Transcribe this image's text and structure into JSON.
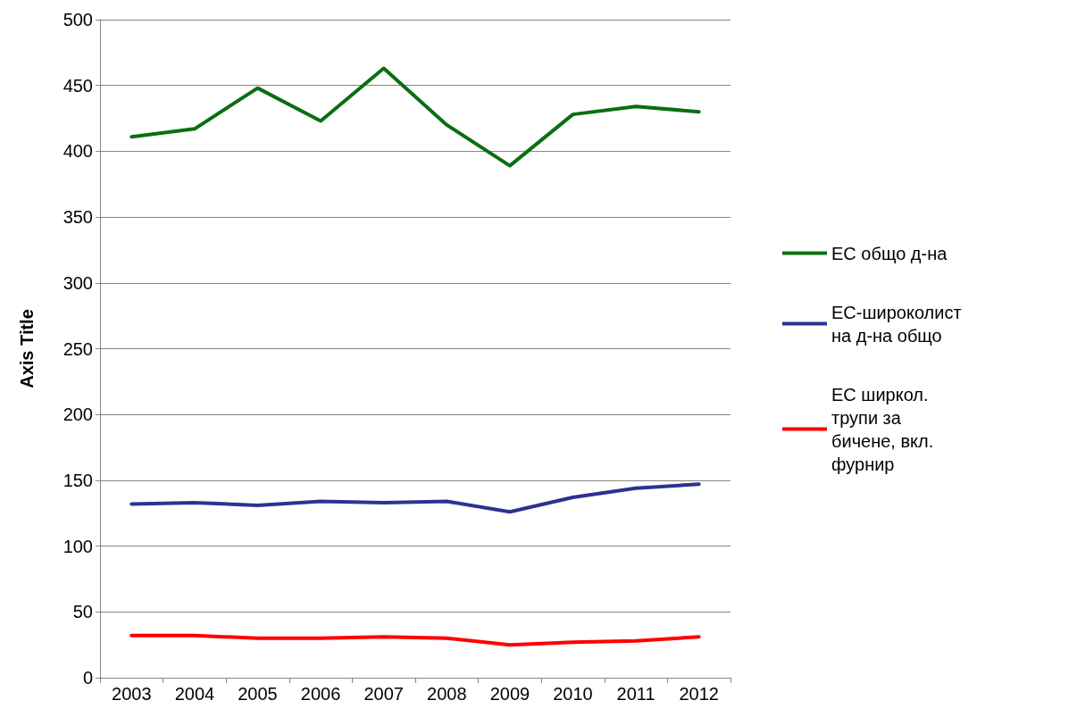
{
  "chart_data": {
    "type": "line",
    "ylabel": "Axis Title",
    "categories": [
      "2003",
      "2004",
      "2005",
      "2006",
      "2007",
      "2008",
      "2009",
      "2010",
      "2011",
      "2012"
    ],
    "series": [
      {
        "name": "ЕС общо д-на",
        "color": "#0b6e12",
        "values": [
          411,
          417,
          448,
          423,
          463,
          420,
          389,
          428,
          434,
          430
        ]
      },
      {
        "name": "ЕС-широколистна д-на общо",
        "color": "#2e3192",
        "values": [
          132,
          133,
          131,
          134,
          133,
          134,
          126,
          137,
          144,
          147
        ]
      },
      {
        "name": "ЕС ширкол. трупи за бичене, вкл. фурнир",
        "color": "#ff0000",
        "values": [
          32,
          32,
          30,
          30,
          31,
          30,
          25,
          27,
          28,
          31
        ]
      }
    ],
    "ylim": [
      0,
      500
    ],
    "yticks": [
      0,
      50,
      100,
      150,
      200,
      250,
      300,
      350,
      400,
      450,
      500
    ],
    "grid": "y",
    "legend": "right",
    "marker": "none",
    "line_style": "solid"
  }
}
